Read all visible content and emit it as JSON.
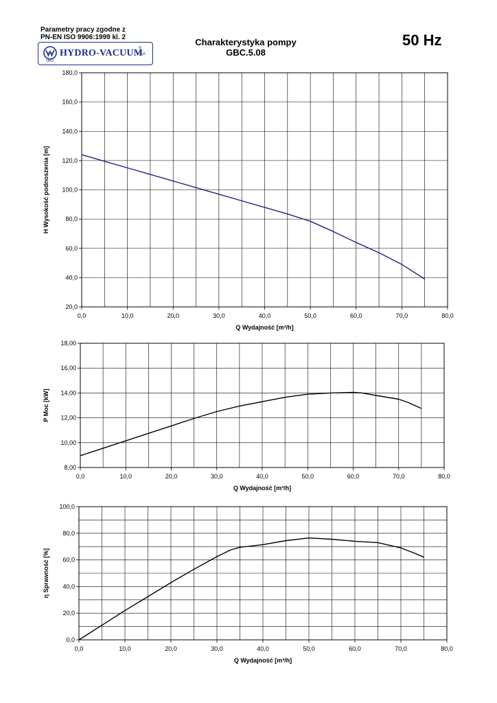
{
  "header": {
    "standard_line1": "Parametry pracy zgodne z",
    "standard_line2": "PN-EN ISO 9906:1999 kl. 2",
    "logo_text": "HYDRO-VACUUM",
    "logo_reg": "®",
    "logo_suffix": "S.A.",
    "logo_year": "1862",
    "title_line1": "Charakterystyka pompy",
    "title_line2": "GBC.5.08",
    "frequency": "50 Hz"
  },
  "colors": {
    "logo": "#1a2f8a",
    "head_curve": "#1a237e",
    "curve": "#000000",
    "grid": "#000000"
  },
  "chart_data": [
    {
      "type": "line",
      "xlabel": "Q Wydajność [m³/h]",
      "ylabel": "H  Wysokość podnoszenia [m]",
      "xlim": [
        0,
        80
      ],
      "ylim": [
        20,
        180
      ],
      "xticks": [
        0,
        10,
        20,
        30,
        40,
        50,
        60,
        70,
        80
      ],
      "yticks": [
        20,
        40,
        60,
        80,
        100,
        120,
        140,
        160,
        180
      ],
      "xtick_labels": [
        "0,0",
        "10,0",
        "20,0",
        "30,0",
        "40,0",
        "50,0",
        "60,0",
        "70,0",
        "80,0"
      ],
      "ytick_labels": [
        "20,0",
        "40,0",
        "60,0",
        "80,0",
        "100,0",
        "120,0",
        "140,0",
        "160,0",
        "180,0"
      ],
      "x_minor_step": 5,
      "y_minor_step": 20,
      "grid": true,
      "x": [
        0,
        5,
        10,
        15,
        20,
        25,
        30,
        35,
        40,
        45,
        50,
        55,
        60,
        65,
        70,
        75
      ],
      "y": [
        124,
        119.5,
        115,
        110.5,
        106,
        101.5,
        97,
        92.5,
        88,
        83.5,
        78.5,
        71.5,
        64,
        57,
        49,
        39
      ]
    },
    {
      "type": "line",
      "xlabel": "Q Wydajność [m³/h]",
      "ylabel": "P  Moc [kW]",
      "xlim": [
        0,
        80
      ],
      "ylim": [
        8,
        18
      ],
      "xticks": [
        0,
        10,
        20,
        30,
        40,
        50,
        60,
        70,
        80
      ],
      "yticks": [
        8,
        10,
        12,
        14,
        16,
        18
      ],
      "xtick_labels": [
        "0,0",
        "10,0",
        "20,0",
        "30,0",
        "40,0",
        "50,0",
        "60,0",
        "70,0",
        "80,0"
      ],
      "ytick_labels": [
        "8,00",
        "10,00",
        "12,00",
        "14,00",
        "16,00",
        "18,00"
      ],
      "x_minor_step": 5,
      "y_minor_step": 2,
      "grid": true,
      "x": [
        0,
        5,
        10,
        15,
        20,
        25,
        30,
        35,
        40,
        45,
        50,
        55,
        60,
        62,
        65,
        70,
        72,
        75
      ],
      "y": [
        8.95,
        9.55,
        10.15,
        10.75,
        11.35,
        11.95,
        12.5,
        12.95,
        13.3,
        13.65,
        13.9,
        14.0,
        14.05,
        14.0,
        13.8,
        13.5,
        13.25,
        12.75
      ]
    },
    {
      "type": "line",
      "xlabel": "Q Wydajność [m³/h]",
      "ylabel": "η Sprawność [%]",
      "xlim": [
        0,
        80
      ],
      "ylim": [
        0,
        100
      ],
      "xticks": [
        0,
        10,
        20,
        30,
        40,
        50,
        60,
        70,
        80
      ],
      "yticks": [
        0,
        20,
        40,
        60,
        80,
        100
      ],
      "xtick_labels": [
        "0,0",
        "10,0",
        "20,0",
        "30,0",
        "40,0",
        "50,0",
        "60,0",
        "70,0",
        "80,0"
      ],
      "ytick_labels": [
        "0,0",
        "20,0",
        "40,0",
        "60,0",
        "80,0",
        "100,0"
      ],
      "x_minor_step": 5,
      "y_minor_step": 10,
      "grid": true,
      "x": [
        0,
        5,
        10,
        15,
        20,
        25,
        30,
        33,
        35,
        40,
        45,
        50,
        55,
        60,
        65,
        70,
        73,
        75
      ],
      "y": [
        0,
        11,
        22,
        32.5,
        43,
        53,
        62.5,
        67.5,
        69.5,
        71.5,
        74.5,
        76.5,
        75.5,
        74,
        73,
        69,
        65,
        62
      ]
    }
  ]
}
